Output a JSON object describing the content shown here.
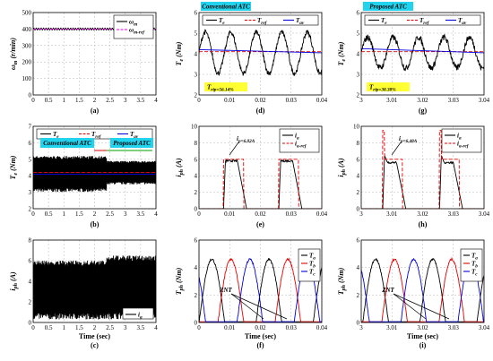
{
  "chart_data": [
    {
      "id": "a",
      "type": "line",
      "caption": "(a)",
      "xlabel": "",
      "ylabel": "ω_m (r/min)",
      "xlim": [
        0,
        4
      ],
      "ylim": [
        0,
        500
      ],
      "xticks": [
        "0",
        "0.5",
        "1",
        "1.5",
        "2",
        "2.5",
        "3",
        "3.5",
        "4"
      ],
      "yticks": [
        "0",
        "100",
        "200",
        "300",
        "400",
        "500"
      ],
      "series": [
        {
          "name": "ω_m",
          "color": "#000000",
          "dash": "",
          "kind": "ripple",
          "params": {
            "base": 400,
            "amp": 6,
            "cycles": 50
          }
        },
        {
          "name": "ω_m-ref",
          "color": "#e000e0",
          "dash": "4,2",
          "kind": "const",
          "params": {
            "value": 400
          }
        }
      ],
      "legend": "top-right"
    },
    {
      "id": "b",
      "type": "line",
      "caption": "(b)",
      "xlabel": "",
      "ylabel": "T_e (Nm)",
      "xlim": [
        0,
        4
      ],
      "ylim": [
        2,
        7
      ],
      "xticks": [
        "0",
        "0.5",
        "1",
        "1.5",
        "2",
        "2.5",
        "3",
        "3.5",
        "4"
      ],
      "yticks": [
        "2",
        "3",
        "4",
        "5",
        "6",
        "7"
      ],
      "series": [
        {
          "name": "T_e",
          "color": "#000000",
          "dash": "",
          "kind": "band",
          "params": {
            "switch": 2.4,
            "lo1": 2.9,
            "hi1": 5.2,
            "lo2": 3.4,
            "hi2": 4.9
          }
        },
        {
          "name": "T_ref",
          "color": "#e00000",
          "dash": "4,2",
          "kind": "const",
          "params": {
            "value": 4.2
          }
        },
        {
          "name": "T_av",
          "color": "#0000e0",
          "dash": "",
          "kind": "const",
          "params": {
            "value": 4.1
          }
        }
      ],
      "labels": [
        "Conventional ATC",
        "Proposed ATC"
      ],
      "legend": "top"
    },
    {
      "id": "c",
      "type": "line",
      "caption": "(c)",
      "xlabel": "Time (sec)",
      "ylabel": "i_ph (A)",
      "xlim": [
        0,
        4
      ],
      "ylim": [
        0,
        8
      ],
      "xticks": [
        "0",
        "0.5",
        "1",
        "1.5",
        "2",
        "2.5",
        "3",
        "3.5",
        "4"
      ],
      "yticks": [
        "0",
        "2",
        "4",
        "6",
        "8"
      ],
      "series": [
        {
          "name": "i_a",
          "color": "#000000",
          "dash": "",
          "kind": "band",
          "params": {
            "switch": 2.4,
            "lo1": 0,
            "hi1": 6.0,
            "lo2": 0,
            "hi2": 6.5
          }
        }
      ],
      "legend": "bottom-right"
    },
    {
      "id": "d",
      "type": "line",
      "caption": "(d)",
      "xlabel": "",
      "ylabel": "T_e (Nm)",
      "xlim": [
        0,
        0.04
      ],
      "ylim": [
        2,
        6
      ],
      "xticks": [
        "0",
        "0.01",
        "0.02",
        "0.03",
        "0.04"
      ],
      "yticks": [
        "2",
        "3",
        "4",
        "5",
        "6"
      ],
      "series": [
        {
          "name": "T_e",
          "color": "#000000",
          "dash": "",
          "kind": "torque",
          "params": {
            "mid": 4.05,
            "amp": 1.0,
            "period": 0.0083,
            "noise": 0.12
          }
        },
        {
          "name": "T_ref",
          "color": "#e00000",
          "dash": "4,2",
          "kind": "const",
          "params": {
            "value": 4.1
          }
        },
        {
          "name": "T_av",
          "color": "#0000e0",
          "dash": "",
          "kind": "line",
          "params": {
            "y0": 4.2,
            "y1": 4.05
          }
        }
      ],
      "labels": [
        "Conventional ATC",
        "T_rip=56.14%"
      ],
      "legend": "top"
    },
    {
      "id": "e",
      "type": "line",
      "caption": "(e)",
      "xlabel": "",
      "ylabel": "i_ph (A)",
      "xlim": [
        0,
        0.04
      ],
      "ylim": [
        0,
        10
      ],
      "xticks": [
        "0",
        "0.01",
        "0.02",
        "0.03",
        "0.04"
      ],
      "yticks": [
        "0",
        "2",
        "4",
        "6",
        "8",
        "10"
      ],
      "series": [
        {
          "name": "i_a",
          "color": "#000000",
          "dash": "",
          "kind": "pulse",
          "params": {
            "starts": [
              0.008,
              0.026
            ],
            "flat": 5.8,
            "tail": 0.003,
            "width": 0.0075,
            "spike": 0
          }
        },
        {
          "name": "i_a-ref",
          "color": "#e00000",
          "dash": "4,2",
          "kind": "square",
          "params": {
            "starts": [
              0.008,
              0.026
            ],
            "width": 0.0065,
            "level": 6.0
          }
        }
      ],
      "labels": [
        "i_p=6.02A"
      ],
      "legend": "top-right"
    },
    {
      "id": "f",
      "type": "line",
      "caption": "(f)",
      "xlabel": "Time (sec)",
      "ylabel": "T_ph (Nm)",
      "xlim": [
        0,
        0.04
      ],
      "ylim": [
        0,
        6
      ],
      "xticks": [
        "0",
        "0.01",
        "0.02",
        "0.03",
        "0.04"
      ],
      "yticks": [
        "0",
        "2",
        "4",
        "6"
      ],
      "series": [
        {
          "name": "T_a",
          "color": "#000000",
          "dash": "",
          "kind": "phase",
          "params": {
            "offset": 0.0,
            "period": 0.0186,
            "peak": 4.6
          }
        },
        {
          "name": "T_b",
          "color": "#e00000",
          "dash": "",
          "kind": "phase",
          "params": {
            "offset": 0.0062,
            "period": 0.0186,
            "peak": 4.6
          }
        },
        {
          "name": "T_c",
          "color": "#0000e0",
          "dash": "",
          "kind": "phase",
          "params": {
            "offset": 0.0124,
            "period": 0.0186,
            "peak": 4.6
          }
        }
      ],
      "labels": [
        "ZNT"
      ],
      "legend": "right"
    },
    {
      "id": "g",
      "type": "line",
      "caption": "(g)",
      "xlabel": "",
      "ylabel": "T_e (Nm)",
      "xlim": [
        3,
        3.04
      ],
      "ylim": [
        2,
        6
      ],
      "xticks": [
        "3",
        "3.01",
        "3.02",
        "3.03",
        "3.04"
      ],
      "yticks": [
        "2",
        "3",
        "4",
        "5",
        "6"
      ],
      "series": [
        {
          "name": "T_e",
          "color": "#000000",
          "dash": "",
          "kind": "torque",
          "params": {
            "mid": 4.05,
            "amp": 0.75,
            "period": 0.0083,
            "noise": 0.15
          }
        },
        {
          "name": "T_ref",
          "color": "#e00000",
          "dash": "4,2",
          "kind": "const",
          "params": {
            "value": 4.1
          }
        },
        {
          "name": "T_av",
          "color": "#0000e0",
          "dash": "",
          "kind": "line",
          "params": {
            "y0": 4.25,
            "y1": 4.05
          }
        }
      ],
      "labels": [
        "Proposed ATC",
        "T_rip=38.38%"
      ],
      "legend": "top"
    },
    {
      "id": "h",
      "type": "line",
      "caption": "(h)",
      "xlabel": "",
      "ylabel": "i_ph (A)",
      "xlim": [
        3,
        3.04
      ],
      "ylim": [
        0,
        10
      ],
      "xticks": [
        "3",
        "3.01",
        "3.02",
        "3.03",
        "3.04"
      ],
      "yticks": [
        "0",
        "2",
        "4",
        "6",
        "8",
        "10"
      ],
      "series": [
        {
          "name": "i_a",
          "color": "#000000",
          "dash": "",
          "kind": "pulse",
          "params": {
            "starts": [
              0.007,
              0.0255
            ],
            "flat": 5.6,
            "tail": 0.003,
            "width": 0.0075,
            "spike": 6.48
          }
        },
        {
          "name": "i_a-ref",
          "color": "#e00000",
          "dash": "4,2",
          "kind": "square",
          "params": {
            "starts": [
              0.007,
              0.0255
            ],
            "width": 0.0065,
            "level": 9.5
          }
        }
      ],
      "labels": [
        "i_p=6.48A"
      ],
      "legend": "top-right"
    },
    {
      "id": "i",
      "type": "line",
      "caption": "(i)",
      "xlabel": "Time (sec)",
      "ylabel": "T_ph (Nm)",
      "xlim": [
        3,
        3.04
      ],
      "ylim": [
        0,
        6
      ],
      "xticks": [
        "3",
        "3.01",
        "3.02",
        "3.03",
        "3.04"
      ],
      "yticks": [
        "0",
        "2",
        "4",
        "6"
      ],
      "series": [
        {
          "name": "T_a",
          "color": "#000000",
          "dash": "",
          "kind": "phase",
          "params": {
            "offset": 0.0005,
            "period": 0.0186,
            "peak": 4.6
          }
        },
        {
          "name": "T_b",
          "color": "#e00000",
          "dash": "",
          "kind": "phase",
          "params": {
            "offset": 0.0067,
            "period": 0.0186,
            "peak": 4.6
          }
        },
        {
          "name": "T_c",
          "color": "#0000e0",
          "dash": "",
          "kind": "phase",
          "params": {
            "offset": 0.0129,
            "period": 0.0186,
            "peak": 4.6
          }
        }
      ],
      "labels": [
        "ZNT"
      ],
      "legend": "right"
    }
  ],
  "colors": {
    "highlight_cyan": "#22d3ee",
    "highlight_yellow": "#ffff33",
    "grid": "#b8b8b8"
  }
}
